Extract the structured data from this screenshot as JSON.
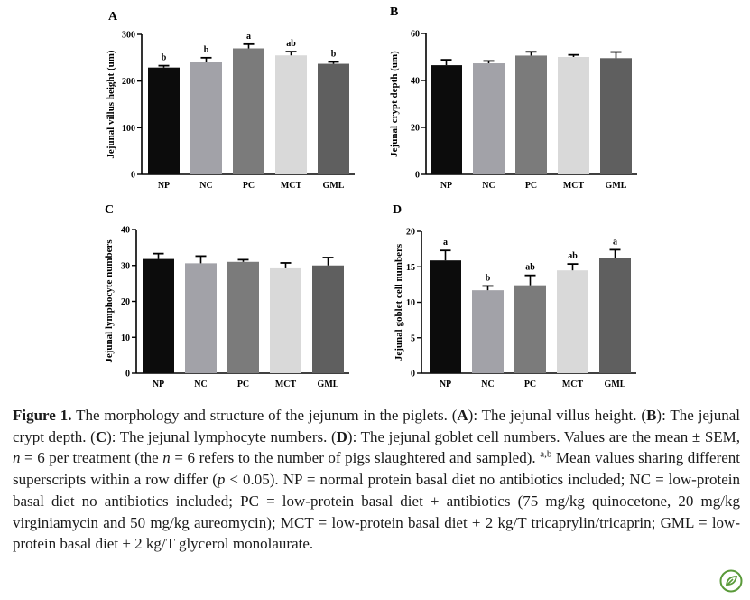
{
  "chart_data": [
    {
      "type": "bar",
      "panel_label": "A",
      "ylabel": "Jejunal villus height (um)",
      "categories": [
        "NP",
        "NC",
        "PC",
        "MCT",
        "GML"
      ],
      "values": [
        229,
        240,
        270,
        255,
        237
      ],
      "errors": [
        4,
        10,
        9,
        8,
        4
      ],
      "superscripts": [
        "b",
        "b",
        "a",
        "ab",
        "b"
      ],
      "ylim": [
        0,
        300
      ],
      "yticks": [
        0,
        100,
        200,
        300
      ],
      "bar_colors": [
        "#0c0c0c",
        "#a2a2a8",
        "#7b7b7b",
        "#d9d9d9",
        "#5f5f5f"
      ]
    },
    {
      "type": "bar",
      "panel_label": "B",
      "ylabel": "Jejunal crypt depth (um)",
      "categories": [
        "NP",
        "NC",
        "PC",
        "MCT",
        "GML"
      ],
      "values": [
        46.5,
        47.3,
        50.6,
        50.0,
        49.5
      ],
      "errors": [
        2.3,
        1.0,
        1.6,
        0.9,
        2.6
      ],
      "superscripts": [
        "",
        "",
        "",
        "",
        ""
      ],
      "ylim": [
        0,
        60
      ],
      "yticks": [
        0,
        20,
        40,
        60
      ],
      "bar_colors": [
        "#0c0c0c",
        "#a2a2a8",
        "#7b7b7b",
        "#d9d9d9",
        "#5f5f5f"
      ]
    },
    {
      "type": "bar",
      "panel_label": "C",
      "ylabel": "Jejunal lymphocyte numbers",
      "categories": [
        "NP",
        "NC",
        "PC",
        "MCT",
        "GML"
      ],
      "values": [
        31.8,
        30.6,
        31.0,
        29.2,
        30.0
      ],
      "errors": [
        1.5,
        2.0,
        0.6,
        1.5,
        2.2
      ],
      "superscripts": [
        "",
        "",
        "",
        "",
        ""
      ],
      "ylim": [
        0,
        40
      ],
      "yticks": [
        0,
        10,
        20,
        30,
        40
      ],
      "bar_colors": [
        "#0c0c0c",
        "#a2a2a8",
        "#7b7b7b",
        "#d9d9d9",
        "#5f5f5f"
      ]
    },
    {
      "type": "bar",
      "panel_label": "D",
      "ylabel": "Jejunal goblet cell numbers",
      "categories": [
        "NP",
        "NC",
        "PC",
        "MCT",
        "GML"
      ],
      "values": [
        15.9,
        11.7,
        12.4,
        14.5,
        16.2
      ],
      "errors": [
        1.4,
        0.6,
        1.4,
        0.9,
        1.2
      ],
      "superscripts": [
        "a",
        "b",
        "ab",
        "ab",
        "a"
      ],
      "ylim": [
        0,
        20
      ],
      "yticks": [
        0,
        5,
        10,
        15,
        20
      ],
      "bar_colors": [
        "#0c0c0c",
        "#a2a2a8",
        "#7b7b7b",
        "#d9d9d9",
        "#5f5f5f"
      ]
    }
  ],
  "caption": {
    "figure_label": "Figure 1.",
    "title": " The morphology and structure of the jejunum in the piglets. (",
    "A_label": "A",
    "A_text": "): The jejunal villus height. (",
    "B_label": "B",
    "B_text": "): The jejunal crypt depth. (",
    "C_label": "C",
    "C_text": "): The jejunal lymphocyte numbers. (",
    "D_label": "D",
    "D_text": "): The jejunal goblet cell numbers. Values are the mean ± SEM, ",
    "n1": "n",
    "mid1": " = 6 per treatment (the ",
    "n2": "n",
    "mid2": " = 6 refers to the number of pigs slaughtered and sampled). ",
    "superscript": "a,b",
    "mid3": " Mean values sharing different superscripts within a row differ (",
    "p": "p",
    "rest": " < 0.05). NP = normal protein basal diet no antibiotics included; NC = low-protein basal diet no antibiotics included; PC = low-protein basal diet + antibiotics (75 mg/kg quinocetone, 20 mg/kg virginiamycin and 50 mg/kg aureomycin); MCT = low-protein basal diet + 2 kg/T tricaprylin/tricaprin; GML = low-protein basal diet + 2 kg/T glycerol monolaurate."
  },
  "logo": {
    "icon": "leaf-badge-icon",
    "color": "#5a9a3a"
  }
}
